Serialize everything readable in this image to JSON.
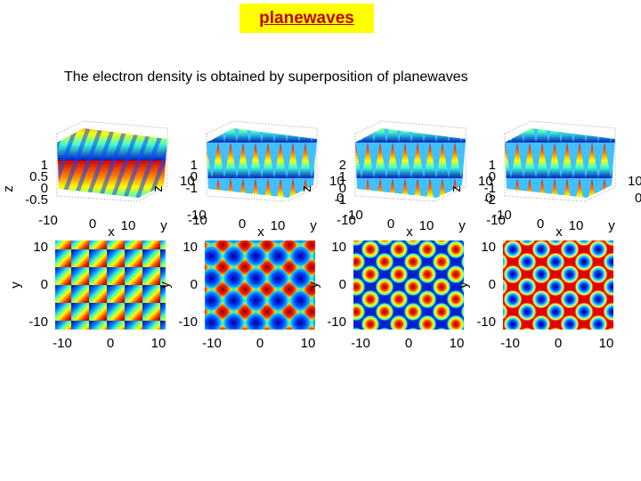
{
  "slide": {
    "title": "planewaves",
    "subtitle": "The electron density is obtained by superposition of planewaves"
  },
  "colors": {
    "title_bg": "#ffff00",
    "title_text": "#c00000"
  },
  "panels": [
    {
      "surface": {
        "zlabel": "z",
        "xlabel": "x",
        "ylabel": "y",
        "z_ticks": [
          "1",
          "0.5",
          "0",
          "-0.5"
        ],
        "x_ticks": [
          "-10",
          "0",
          "10"
        ],
        "y_ticks": [
          "10",
          "-10"
        ]
      },
      "map": {
        "xlabel": "",
        "ylabel": "y",
        "x_ticks": [
          "-10",
          "0",
          "10"
        ],
        "y_ticks": [
          "10",
          "0",
          "-10"
        ],
        "pattern": "diagonal-stripes"
      }
    },
    {
      "surface": {
        "zlabel": "z",
        "xlabel": "x",
        "ylabel": "y",
        "z_ticks": [
          "1",
          "0",
          "-1"
        ],
        "x_ticks": [
          "-10",
          "0",
          "10"
        ],
        "y_ticks": [
          "10",
          "0",
          "-10"
        ]
      },
      "map": {
        "xlabel": "",
        "ylabel": "y",
        "x_ticks": [
          "-10",
          "0",
          "10"
        ],
        "y_ticks": [
          "10",
          "0",
          "-10"
        ],
        "pattern": "square-lattice-spots"
      }
    },
    {
      "surface": {
        "zlabel": "z",
        "xlabel": "x",
        "ylabel": "y",
        "z_ticks": [
          "2",
          "1",
          "0",
          "-1"
        ],
        "x_ticks": [
          "-10",
          "0",
          "10"
        ],
        "y_ticks": [
          "10",
          "0",
          "-10"
        ]
      },
      "map": {
        "xlabel": "",
        "ylabel": "y",
        "x_ticks": [
          "-10",
          "0",
          "10"
        ],
        "y_ticks": [
          "10",
          "0",
          "-10"
        ],
        "pattern": "hexagonal-peaks"
      }
    },
    {
      "surface": {
        "zlabel": "z",
        "xlabel": "x",
        "ylabel": "y",
        "z_ticks": [
          "1",
          "0",
          "-1",
          "-2"
        ],
        "x_ticks": [
          "-10",
          "0",
          "10"
        ],
        "y_ticks": [
          "10",
          "0",
          "-10"
        ]
      },
      "map": {
        "xlabel": "",
        "ylabel": "y",
        "x_ticks": [
          "-10",
          "0",
          "10"
        ],
        "y_ticks": [
          "10",
          "0",
          "-10"
        ],
        "pattern": "hexagonal-holes"
      }
    }
  ]
}
